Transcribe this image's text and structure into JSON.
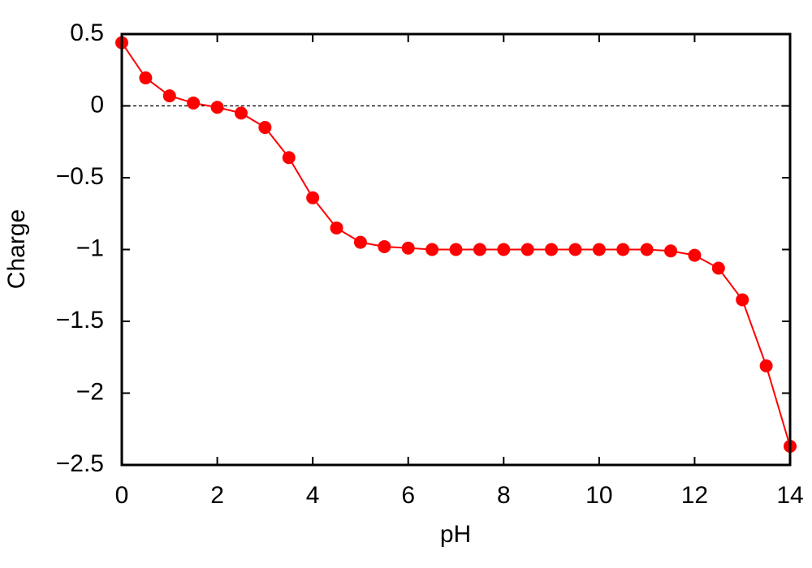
{
  "chart_data": {
    "type": "line",
    "x_label": "pH",
    "y_label": "Charge",
    "x": [
      0,
      0.5,
      1,
      1.5,
      2,
      2.5,
      3,
      3.5,
      4,
      4.5,
      5,
      5.5,
      6,
      6.5,
      7,
      7.5,
      8,
      8.5,
      9,
      9.5,
      10,
      10.5,
      11,
      11.5,
      12,
      12.5,
      13,
      13.5,
      14
    ],
    "series": [
      {
        "color": "#ff0000",
        "values": [
          0.44,
          0.195,
          0.07,
          0.02,
          -0.01,
          -0.05,
          -0.15,
          -0.36,
          -0.64,
          -0.85,
          -0.95,
          -0.98,
          -0.99,
          -1.0,
          -1.0,
          -1.0,
          -1.0,
          -1.0,
          -1.0,
          -1.0,
          -1.0,
          -1.0,
          -1.0,
          -1.01,
          -1.04,
          -1.13,
          -1.35,
          -1.81,
          -2.37
        ]
      }
    ],
    "xlim": [
      0,
      14
    ],
    "xticks": [
      0,
      2,
      4,
      6,
      8,
      10,
      12,
      14
    ],
    "ylim": [
      -2.5,
      0.5
    ],
    "yticks": [
      0.5,
      0,
      {
        "value": -0.5,
        "label": "−0.5"
      },
      {
        "value": -1,
        "label": "−1"
      },
      {
        "value": -1.5,
        "label": "−1.5"
      },
      {
        "value": -2,
        "label": "−2"
      },
      {
        "value": -2.5,
        "label": "−2.5"
      }
    ],
    "zero_line": true,
    "grid": false,
    "legend": false
  }
}
